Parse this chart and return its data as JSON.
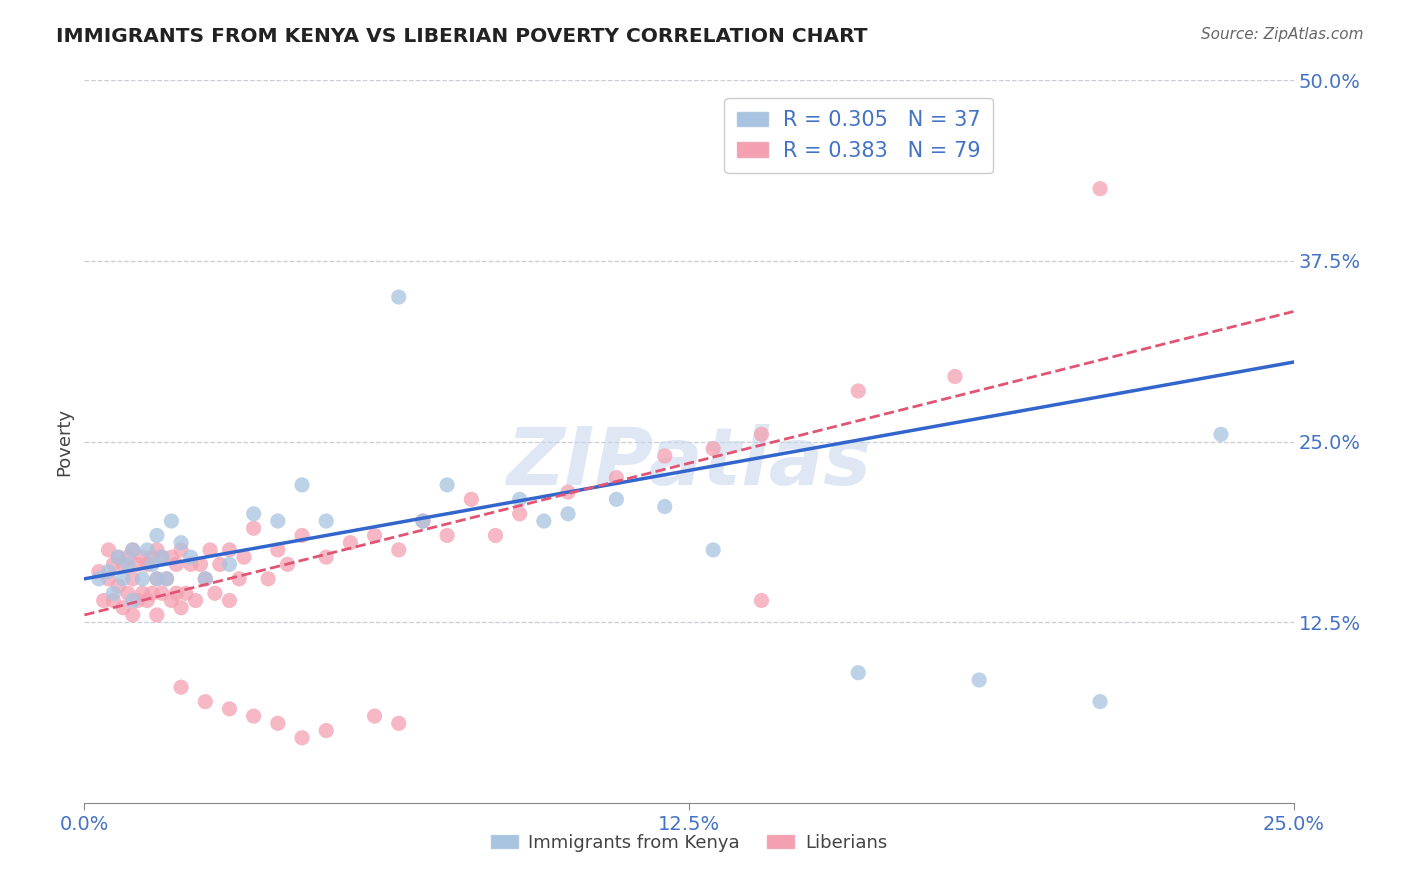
{
  "title": "IMMIGRANTS FROM KENYA VS LIBERIAN POVERTY CORRELATION CHART",
  "source": "Source: ZipAtlas.com",
  "ylabel": "Poverty",
  "legend_label1": "Immigrants from Kenya",
  "legend_label2": "Liberians",
  "r1": 0.305,
  "n1": 37,
  "r2": 0.383,
  "n2": 79,
  "xlim": [
    0.0,
    0.25
  ],
  "ylim": [
    0.0,
    0.5
  ],
  "xticks": [
    0.0,
    0.125,
    0.25
  ],
  "yticks": [
    0.0,
    0.125,
    0.25,
    0.375,
    0.5
  ],
  "xtick_labels": [
    "0.0%",
    "12.5%",
    "25.0%"
  ],
  "ytick_labels": [
    "",
    "12.5%",
    "25.0%",
    "37.5%",
    "50.0%"
  ],
  "color_kenya": "#a8c4e0",
  "color_liberia": "#f4a0b0",
  "line_color_kenya": "#3366cc",
  "line_color_liberia": "#e05575",
  "watermark": "ZIPatlas",
  "watermark_color": "#c8d8ec",
  "kenya_x": [
    0.003,
    0.005,
    0.006,
    0.007,
    0.008,
    0.009,
    0.01,
    0.01,
    0.012,
    0.013,
    0.014,
    0.015,
    0.015,
    0.016,
    0.017,
    0.018,
    0.02,
    0.022,
    0.025,
    0.03,
    0.035,
    0.04,
    0.045,
    0.05,
    0.065,
    0.07,
    0.075,
    0.09,
    0.095,
    0.1,
    0.11,
    0.12,
    0.13,
    0.16,
    0.185,
    0.21,
    0.235
  ],
  "kenya_y": [
    0.155,
    0.16,
    0.145,
    0.17,
    0.155,
    0.165,
    0.14,
    0.175,
    0.155,
    0.175,
    0.165,
    0.155,
    0.185,
    0.17,
    0.155,
    0.195,
    0.18,
    0.17,
    0.155,
    0.165,
    0.2,
    0.195,
    0.22,
    0.195,
    0.35,
    0.195,
    0.22,
    0.21,
    0.195,
    0.2,
    0.21,
    0.205,
    0.175,
    0.09,
    0.085,
    0.07,
    0.255
  ],
  "liberia_x": [
    0.003,
    0.004,
    0.005,
    0.005,
    0.006,
    0.006,
    0.007,
    0.007,
    0.008,
    0.008,
    0.009,
    0.009,
    0.01,
    0.01,
    0.01,
    0.011,
    0.011,
    0.012,
    0.012,
    0.013,
    0.013,
    0.014,
    0.014,
    0.015,
    0.015,
    0.015,
    0.016,
    0.016,
    0.017,
    0.018,
    0.018,
    0.019,
    0.019,
    0.02,
    0.02,
    0.021,
    0.022,
    0.023,
    0.024,
    0.025,
    0.026,
    0.027,
    0.028,
    0.03,
    0.03,
    0.032,
    0.033,
    0.035,
    0.038,
    0.04,
    0.042,
    0.045,
    0.05,
    0.055,
    0.06,
    0.065,
    0.07,
    0.075,
    0.08,
    0.085,
    0.09,
    0.1,
    0.11,
    0.12,
    0.13,
    0.14,
    0.16,
    0.18,
    0.21,
    0.02,
    0.025,
    0.03,
    0.035,
    0.04,
    0.045,
    0.05,
    0.06,
    0.065,
    0.14
  ],
  "liberia_y": [
    0.16,
    0.14,
    0.155,
    0.175,
    0.14,
    0.165,
    0.15,
    0.17,
    0.135,
    0.165,
    0.145,
    0.17,
    0.13,
    0.155,
    0.175,
    0.14,
    0.165,
    0.145,
    0.17,
    0.14,
    0.165,
    0.145,
    0.17,
    0.13,
    0.155,
    0.175,
    0.145,
    0.17,
    0.155,
    0.14,
    0.17,
    0.145,
    0.165,
    0.135,
    0.175,
    0.145,
    0.165,
    0.14,
    0.165,
    0.155,
    0.175,
    0.145,
    0.165,
    0.14,
    0.175,
    0.155,
    0.17,
    0.19,
    0.155,
    0.175,
    0.165,
    0.185,
    0.17,
    0.18,
    0.185,
    0.175,
    0.195,
    0.185,
    0.21,
    0.185,
    0.2,
    0.215,
    0.225,
    0.24,
    0.245,
    0.255,
    0.285,
    0.295,
    0.425,
    0.08,
    0.07,
    0.065,
    0.06,
    0.055,
    0.045,
    0.05,
    0.06,
    0.055,
    0.14
  ],
  "kenya_line_x": [
    0.0,
    0.25
  ],
  "kenya_line_y": [
    0.155,
    0.305
  ],
  "liberia_line_x": [
    0.0,
    0.25
  ],
  "liberia_line_y": [
    0.13,
    0.34
  ]
}
